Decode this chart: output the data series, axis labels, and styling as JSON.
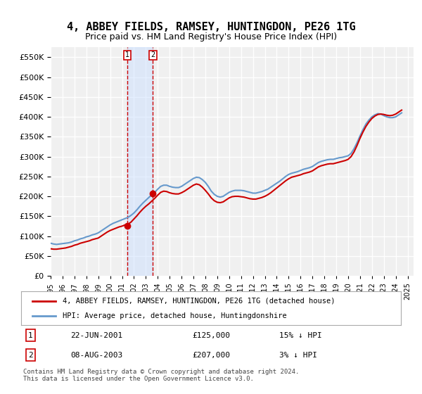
{
  "title": "4, ABBEY FIELDS, RAMSEY, HUNTINGDON, PE26 1TG",
  "subtitle": "Price paid vs. HM Land Registry's House Price Index (HPI)",
  "title_fontsize": 11,
  "subtitle_fontsize": 9,
  "ylabel_ticks": [
    "£0",
    "£50K",
    "£100K",
    "£150K",
    "£200K",
    "£250K",
    "£300K",
    "£350K",
    "£400K",
    "£450K",
    "£500K",
    "£550K"
  ],
  "ytick_values": [
    0,
    50000,
    100000,
    150000,
    200000,
    250000,
    300000,
    350000,
    400000,
    450000,
    500000,
    550000
  ],
  "ylim": [
    0,
    575000
  ],
  "xlim_start": 1995.0,
  "xlim_end": 2025.5,
  "background_color": "#ffffff",
  "plot_bg_color": "#f0f0f0",
  "grid_color": "#ffffff",
  "hpi_color": "#6699cc",
  "price_color": "#cc0000",
  "transaction1_date": 2001.47,
  "transaction1_price": 125000,
  "transaction2_date": 2003.6,
  "transaction2_price": 207000,
  "vspan_color": "#cce0ff",
  "vspan_alpha": 0.5,
  "legend_label_red": "4, ABBEY FIELDS, RAMSEY, HUNTINGDON, PE26 1TG (detached house)",
  "legend_label_blue": "HPI: Average price, detached house, Huntingdonshire",
  "table_rows": [
    [
      "1",
      "22-JUN-2001",
      "£125,000",
      "15% ↓ HPI"
    ],
    [
      "2",
      "08-AUG-2003",
      "£207,000",
      "3% ↓ HPI"
    ]
  ],
  "footnote": "Contains HM Land Registry data © Crown copyright and database right 2024.\nThis data is licensed under the Open Government Licence v3.0.",
  "hpi_data_x": [
    1995.0,
    1995.25,
    1995.5,
    1995.75,
    1996.0,
    1996.25,
    1996.5,
    1996.75,
    1997.0,
    1997.25,
    1997.5,
    1997.75,
    1998.0,
    1998.25,
    1998.5,
    1998.75,
    1999.0,
    1999.25,
    1999.5,
    1999.75,
    2000.0,
    2000.25,
    2000.5,
    2000.75,
    2001.0,
    2001.25,
    2001.5,
    2001.75,
    2002.0,
    2002.25,
    2002.5,
    2002.75,
    2003.0,
    2003.25,
    2003.5,
    2003.75,
    2004.0,
    2004.25,
    2004.5,
    2004.75,
    2005.0,
    2005.25,
    2005.5,
    2005.75,
    2006.0,
    2006.25,
    2006.5,
    2006.75,
    2007.0,
    2007.25,
    2007.5,
    2007.75,
    2008.0,
    2008.25,
    2008.5,
    2008.75,
    2009.0,
    2009.25,
    2009.5,
    2009.75,
    2010.0,
    2010.25,
    2010.5,
    2010.75,
    2011.0,
    2011.25,
    2011.5,
    2011.75,
    2012.0,
    2012.25,
    2012.5,
    2012.75,
    2013.0,
    2013.25,
    2013.5,
    2013.75,
    2014.0,
    2014.25,
    2014.5,
    2014.75,
    2015.0,
    2015.25,
    2015.5,
    2015.75,
    2016.0,
    2016.25,
    2016.5,
    2016.75,
    2017.0,
    2017.25,
    2017.5,
    2017.75,
    2018.0,
    2018.25,
    2018.5,
    2018.75,
    2019.0,
    2019.25,
    2019.5,
    2019.75,
    2020.0,
    2020.25,
    2020.5,
    2020.75,
    2021.0,
    2021.25,
    2021.5,
    2021.75,
    2022.0,
    2022.25,
    2022.5,
    2022.75,
    2023.0,
    2023.25,
    2023.5,
    2023.75,
    2024.0,
    2024.25,
    2024.5
  ],
  "hpi_data_y": [
    82000,
    80000,
    79000,
    80000,
    81000,
    82000,
    83000,
    85000,
    88000,
    90000,
    93000,
    95000,
    98000,
    100000,
    103000,
    105000,
    108000,
    113000,
    118000,
    123000,
    128000,
    132000,
    135000,
    138000,
    141000,
    144000,
    147000,
    152000,
    158000,
    166000,
    175000,
    183000,
    190000,
    197000,
    204000,
    210000,
    218000,
    225000,
    228000,
    228000,
    225000,
    223000,
    222000,
    222000,
    225000,
    230000,
    235000,
    240000,
    245000,
    248000,
    247000,
    242000,
    235000,
    225000,
    213000,
    205000,
    200000,
    198000,
    200000,
    205000,
    210000,
    213000,
    215000,
    215000,
    215000,
    214000,
    212000,
    210000,
    208000,
    208000,
    210000,
    212000,
    215000,
    218000,
    223000,
    228000,
    233000,
    238000,
    244000,
    250000,
    255000,
    258000,
    260000,
    262000,
    265000,
    268000,
    270000,
    272000,
    275000,
    280000,
    285000,
    288000,
    290000,
    292000,
    293000,
    293000,
    295000,
    297000,
    298000,
    300000,
    302000,
    308000,
    320000,
    335000,
    352000,
    368000,
    382000,
    392000,
    400000,
    405000,
    408000,
    407000,
    403000,
    400000,
    398000,
    398000,
    400000,
    405000,
    410000
  ],
  "price_data_x": [
    1995.0,
    1995.25,
    1995.5,
    1995.75,
    1996.0,
    1996.25,
    1996.5,
    1996.75,
    1997.0,
    1997.25,
    1997.5,
    1997.75,
    1998.0,
    1998.25,
    1998.5,
    1998.75,
    1999.0,
    1999.25,
    1999.5,
    1999.75,
    2000.0,
    2000.25,
    2000.5,
    2000.75,
    2001.0,
    2001.25,
    2001.5,
    2001.75,
    2002.0,
    2002.25,
    2002.5,
    2002.75,
    2003.0,
    2003.25,
    2003.5,
    2003.75,
    2004.0,
    2004.25,
    2004.5,
    2004.75,
    2005.0,
    2005.25,
    2005.5,
    2005.75,
    2006.0,
    2006.25,
    2006.5,
    2006.75,
    2007.0,
    2007.25,
    2007.5,
    2007.75,
    2008.0,
    2008.25,
    2008.5,
    2008.75,
    2009.0,
    2009.25,
    2009.5,
    2009.75,
    2010.0,
    2010.25,
    2010.5,
    2010.75,
    2011.0,
    2011.25,
    2011.5,
    2011.75,
    2012.0,
    2012.25,
    2012.5,
    2012.75,
    2013.0,
    2013.25,
    2013.5,
    2013.75,
    2014.0,
    2014.25,
    2014.5,
    2014.75,
    2015.0,
    2015.25,
    2015.5,
    2015.75,
    2016.0,
    2016.25,
    2016.5,
    2016.75,
    2017.0,
    2017.25,
    2017.5,
    2017.75,
    2018.0,
    2018.25,
    2018.5,
    2018.75,
    2019.0,
    2019.25,
    2019.5,
    2019.75,
    2020.0,
    2020.25,
    2020.5,
    2020.75,
    2021.0,
    2021.25,
    2021.5,
    2021.75,
    2022.0,
    2022.25,
    2022.5,
    2022.75,
    2023.0,
    2023.25,
    2023.5,
    2023.75,
    2024.0,
    2024.25,
    2024.5
  ],
  "price_data_y": [
    68000,
    67000,
    67000,
    68000,
    69000,
    70000,
    72000,
    74000,
    77000,
    79000,
    82000,
    84000,
    86000,
    88000,
    91000,
    93000,
    95000,
    100000,
    105000,
    110000,
    114000,
    117000,
    120000,
    123000,
    125000,
    128000,
    130000,
    135000,
    143000,
    151000,
    160000,
    168000,
    175000,
    181000,
    188000,
    195000,
    203000,
    210000,
    213000,
    212000,
    209000,
    207000,
    206000,
    206000,
    209000,
    213000,
    218000,
    223000,
    228000,
    231000,
    229000,
    223000,
    215000,
    206000,
    196000,
    189000,
    185000,
    184000,
    186000,
    191000,
    196000,
    199000,
    200000,
    200000,
    199000,
    198000,
    196000,
    194000,
    193000,
    193000,
    195000,
    197000,
    200000,
    204000,
    209000,
    215000,
    221000,
    227000,
    233000,
    239000,
    244000,
    248000,
    250000,
    252000,
    254000,
    257000,
    259000,
    261000,
    264000,
    269000,
    274000,
    277000,
    279000,
    281000,
    282000,
    282000,
    284000,
    286000,
    288000,
    290000,
    293000,
    300000,
    312000,
    328000,
    346000,
    362000,
    376000,
    387000,
    396000,
    402000,
    406000,
    407000,
    406000,
    404000,
    403000,
    404000,
    407000,
    412000,
    417000
  ]
}
